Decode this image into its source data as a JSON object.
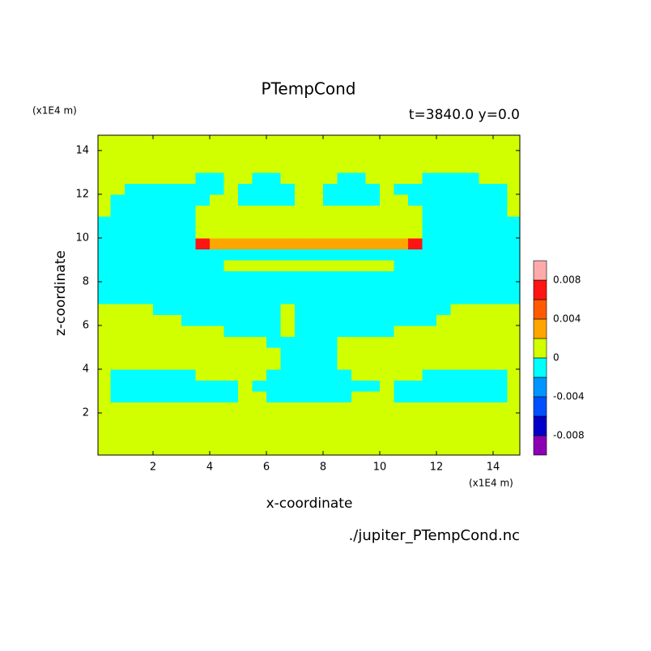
{
  "chart_data": {
    "type": "contour",
    "title": "PTempCond",
    "subtitle": "t=3840.0 y=0.0",
    "xlabel": "x-coordinate",
    "ylabel": "z-coordinate",
    "y_unit": "(x1E4 m)",
    "x_unit": "(x1E4 m)",
    "source": "./jupiter_PTempCond.nc",
    "xlim": [
      0,
      15
    ],
    "ylim": [
      0,
      14.7
    ],
    "xticks": [
      2,
      4,
      6,
      8,
      10,
      12,
      14
    ],
    "yticks": [
      2,
      4,
      6,
      8,
      10,
      12,
      14
    ],
    "levels": [
      -0.01,
      -0.008,
      -0.006,
      -0.004,
      -0.002,
      0,
      0.002,
      0.004,
      0.006,
      0.008,
      0.01
    ],
    "colors": [
      "#8c00b4",
      "#0000c8",
      "#0050ff",
      "#0096ff",
      "#00ffff",
      "#d2ff00",
      "#ffa500",
      "#ff5a00",
      "#ff1414",
      "#ffaaaa"
    ],
    "cticks": [
      -0.008,
      -0.004,
      0,
      0.004,
      0.008
    ],
    "x": [
      0.25,
      0.75,
      1.25,
      1.75,
      2.25,
      2.75,
      3.25,
      3.75,
      4.25,
      4.75,
      5.25,
      5.75,
      6.25,
      6.75,
      7.25,
      7.75,
      8.25,
      8.75,
      9.25,
      9.75,
      10.25,
      10.75,
      11.25,
      11.75,
      12.25,
      12.75,
      13.25,
      13.75,
      14.25,
      14.75
    ],
    "y": [
      0.25,
      0.75,
      1.25,
      1.75,
      2.25,
      2.75,
      3.25,
      3.75,
      4.25,
      4.75,
      5.25,
      5.75,
      6.25,
      6.75,
      7.25,
      7.75,
      8.25,
      8.75,
      9.25,
      9.75,
      10.25,
      10.75,
      11.25,
      11.75,
      12.25,
      12.75,
      13.25,
      13.75,
      14.25,
      14.75
    ],
    "values": [
      [
        0.001,
        0.001,
        0.001,
        0.001,
        0.001,
        0.001,
        0.001,
        0.001,
        0.001,
        0.001,
        0.001,
        0.001,
        0.001,
        0.001,
        0.001,
        0.001,
        0.001,
        0.001,
        0.001,
        0.001,
        0.001,
        0.001,
        0.001,
        0.001,
        0.001,
        0.001,
        0.001,
        0.001,
        0.001,
        0.001
      ],
      [
        0.001,
        0.001,
        0.001,
        0.001,
        0.001,
        0.001,
        0.001,
        0.001,
        0.001,
        0.001,
        0.001,
        0.001,
        0.001,
        0.001,
        0.001,
        0.001,
        0.001,
        0.001,
        0.001,
        0.001,
        0.001,
        0.001,
        0.001,
        0.001,
        0.001,
        0.001,
        0.001,
        0.001,
        0.001,
        0.001
      ],
      [
        0.001,
        0.001,
        0.001,
        0.001,
        0.001,
        0.001,
        0.001,
        0.001,
        0.001,
        0.001,
        0.001,
        0.001,
        0.001,
        0.001,
        0.001,
        0.001,
        0.001,
        0.001,
        0.001,
        0.001,
        0.001,
        0.001,
        0.001,
        0.001,
        0.001,
        0.001,
        0.001,
        0.001,
        0.001,
        0.001
      ],
      [
        0.001,
        0.001,
        0.001,
        0.001,
        0.001,
        0.001,
        0.001,
        0.001,
        0.001,
        0.001,
        0.001,
        0.001,
        0.001,
        0.001,
        0.001,
        0.001,
        0.001,
        0.001,
        0.001,
        0.001,
        0.001,
        0.001,
        0.001,
        0.001,
        0.001,
        0.001,
        0.001,
        0.001,
        0.001,
        0.001
      ],
      [
        0.001,
        0.001,
        0.001,
        0.001,
        0.001,
        0.001,
        0.001,
        0.001,
        0.001,
        0.001,
        0.001,
        0.001,
        0.001,
        0.001,
        0.001,
        0.001,
        0.001,
        0.001,
        0.001,
        0.001,
        0.001,
        0.001,
        0.001,
        0.001,
        0.001,
        0.001,
        0.001,
        0.001,
        0.001,
        0.001
      ],
      [
        0.001,
        -0.001,
        -0.001,
        -0.001,
        -0.001,
        -0.001,
        -0.001,
        -0.001,
        -0.001,
        -0.001,
        0.001,
        0.001,
        -0.001,
        -0.001,
        -0.001,
        -0.001,
        -0.001,
        -0.001,
        0.001,
        0.001,
        0.001,
        -0.001,
        -0.001,
        -0.001,
        -0.001,
        -0.001,
        -0.001,
        -0.001,
        -0.001,
        0.001
      ],
      [
        0.001,
        -0.001,
        -0.001,
        -0.001,
        -0.001,
        -0.001,
        -0.001,
        -0.001,
        -0.001,
        -0.001,
        0.001,
        -0.001,
        -0.001,
        -0.001,
        -0.001,
        -0.001,
        -0.001,
        -0.001,
        -0.001,
        -0.001,
        0.001,
        -0.001,
        -0.001,
        -0.001,
        -0.001,
        -0.001,
        -0.001,
        -0.001,
        -0.001,
        0.001
      ],
      [
        0.001,
        -0.001,
        -0.001,
        -0.001,
        -0.001,
        -0.001,
        -0.001,
        0.001,
        0.001,
        0.001,
        0.001,
        0.001,
        -0.001,
        -0.001,
        -0.001,
        -0.001,
        -0.001,
        -0.001,
        0.001,
        0.001,
        0.001,
        0.001,
        0.001,
        -0.001,
        -0.001,
        -0.001,
        -0.001,
        -0.001,
        -0.001,
        0.001
      ],
      [
        0.001,
        0.001,
        0.001,
        0.001,
        0.001,
        0.001,
        0.001,
        0.001,
        0.001,
        0.001,
        0.001,
        0.001,
        0.001,
        -0.001,
        -0.001,
        -0.001,
        -0.001,
        0.001,
        0.001,
        0.001,
        0.001,
        0.001,
        0.001,
        0.001,
        0.001,
        0.001,
        0.001,
        0.001,
        0.001,
        0.001
      ],
      [
        0.001,
        0.001,
        0.001,
        0.001,
        0.001,
        0.001,
        0.001,
        0.001,
        0.001,
        0.001,
        0.001,
        0.001,
        0.001,
        -0.001,
        -0.001,
        -0.001,
        -0.001,
        0.001,
        0.001,
        0.001,
        0.001,
        0.001,
        0.001,
        0.001,
        0.001,
        0.001,
        0.001,
        0.001,
        0.001,
        0.001
      ],
      [
        0.001,
        0.001,
        0.001,
        0.001,
        0.001,
        0.001,
        0.001,
        0.001,
        0.001,
        0.001,
        0.001,
        0.001,
        -0.001,
        -0.001,
        -0.001,
        -0.001,
        -0.001,
        0.001,
        0.001,
        0.001,
        0.001,
        0.001,
        0.001,
        0.001,
        0.001,
        0.001,
        0.001,
        0.001,
        0.001,
        0.001
      ],
      [
        0.001,
        0.001,
        0.001,
        0.001,
        0.001,
        0.001,
        0.001,
        0.001,
        0.001,
        -0.001,
        -0.001,
        -0.001,
        -0.001,
        0.001,
        -0.001,
        -0.001,
        -0.001,
        -0.001,
        -0.001,
        -0.001,
        -0.001,
        0.001,
        0.001,
        0.001,
        0.001,
        0.001,
        0.001,
        0.001,
        0.001,
        0.001
      ],
      [
        0.001,
        0.001,
        0.001,
        0.001,
        0.001,
        0.001,
        -0.001,
        -0.001,
        -0.001,
        -0.001,
        -0.001,
        -0.001,
        -0.001,
        0.001,
        -0.001,
        -0.001,
        -0.001,
        -0.001,
        -0.001,
        -0.001,
        -0.001,
        -0.001,
        -0.001,
        -0.001,
        0.001,
        0.001,
        0.001,
        0.001,
        0.001,
        0.001
      ],
      [
        0.001,
        0.001,
        0.001,
        0.001,
        -0.001,
        -0.001,
        -0.001,
        -0.001,
        -0.001,
        -0.001,
        -0.001,
        -0.001,
        -0.001,
        0.001,
        -0.001,
        -0.001,
        -0.001,
        -0.001,
        -0.001,
        -0.001,
        -0.001,
        -0.001,
        -0.001,
        -0.001,
        -0.001,
        0.001,
        0.001,
        0.001,
        0.001,
        0.001
      ],
      [
        -0.001,
        -0.001,
        -0.001,
        -0.001,
        -0.001,
        -0.001,
        -0.001,
        -0.001,
        -0.001,
        -0.001,
        -0.001,
        -0.001,
        -0.001,
        -0.001,
        -0.001,
        -0.001,
        -0.001,
        -0.001,
        -0.001,
        -0.001,
        -0.001,
        -0.001,
        -0.001,
        -0.001,
        -0.001,
        -0.001,
        -0.001,
        -0.001,
        -0.001,
        -0.001
      ],
      [
        -0.001,
        -0.001,
        -0.001,
        -0.001,
        -0.001,
        -0.001,
        -0.001,
        -0.001,
        -0.001,
        -0.001,
        -0.001,
        -0.001,
        -0.001,
        -0.001,
        -0.001,
        -0.001,
        -0.001,
        -0.001,
        -0.001,
        -0.001,
        -0.001,
        -0.001,
        -0.001,
        -0.001,
        -0.001,
        -0.001,
        -0.001,
        -0.001,
        -0.001,
        -0.001
      ],
      [
        -0.001,
        -0.001,
        -0.001,
        -0.001,
        -0.001,
        -0.001,
        -0.001,
        -0.001,
        -0.001,
        -0.001,
        -0.001,
        -0.001,
        -0.001,
        -0.001,
        -0.001,
        -0.001,
        -0.001,
        -0.001,
        -0.001,
        -0.001,
        -0.001,
        -0.001,
        -0.001,
        -0.001,
        -0.001,
        -0.001,
        -0.001,
        -0.001,
        -0.001,
        -0.001
      ],
      [
        -0.001,
        -0.001,
        -0.001,
        -0.001,
        -0.001,
        -0.001,
        -0.001,
        -0.001,
        -0.001,
        0.001,
        0.001,
        0.001,
        0.001,
        0.001,
        0.001,
        0.001,
        0.001,
        0.001,
        0.001,
        0.001,
        0.001,
        -0.001,
        -0.001,
        -0.001,
        -0.001,
        -0.001,
        -0.001,
        -0.001,
        -0.001,
        -0.001
      ],
      [
        -0.001,
        -0.001,
        -0.001,
        -0.001,
        -0.001,
        -0.001,
        -0.001,
        -0.001,
        -0.001,
        -0.001,
        -0.001,
        -0.001,
        -0.001,
        -0.001,
        -0.001,
        -0.001,
        -0.001,
        -0.001,
        -0.001,
        -0.001,
        -0.001,
        -0.001,
        -0.001,
        -0.001,
        -0.001,
        -0.001,
        -0.001,
        -0.001,
        -0.001,
        -0.001
      ],
      [
        -0.001,
        -0.001,
        -0.001,
        -0.001,
        -0.001,
        -0.001,
        -0.001,
        0.007,
        0.003,
        0.003,
        0.003,
        0.003,
        0.003,
        0.003,
        0.003,
        0.003,
        0.003,
        0.003,
        0.003,
        0.003,
        0.003,
        0.003,
        0.007,
        -0.001,
        -0.001,
        -0.001,
        -0.001,
        -0.001,
        -0.001,
        -0.001
      ],
      [
        -0.001,
        -0.001,
        -0.001,
        -0.001,
        -0.001,
        -0.001,
        -0.001,
        0.001,
        0.001,
        0.001,
        0.001,
        0.001,
        0.001,
        0.001,
        0.001,
        0.001,
        0.001,
        0.001,
        0.001,
        0.001,
        0.001,
        0.001,
        0.001,
        -0.001,
        -0.001,
        -0.001,
        -0.001,
        -0.001,
        -0.001,
        -0.001
      ],
      [
        -0.001,
        -0.001,
        -0.001,
        -0.001,
        -0.001,
        -0.001,
        -0.001,
        0.001,
        0.001,
        0.001,
        0.001,
        0.001,
        0.001,
        0.001,
        0.001,
        0.001,
        0.001,
        0.001,
        0.001,
        0.001,
        0.001,
        0.001,
        0.001,
        -0.001,
        -0.001,
        -0.001,
        -0.001,
        -0.001,
        -0.001,
        -0.001
      ],
      [
        0.001,
        -0.001,
        -0.001,
        -0.001,
        -0.001,
        -0.001,
        -0.001,
        0.001,
        0.001,
        0.001,
        0.001,
        0.001,
        0.001,
        0.001,
        0.001,
        0.001,
        0.001,
        0.001,
        0.001,
        0.001,
        0.001,
        0.001,
        0.001,
        -0.001,
        -0.001,
        -0.001,
        -0.001,
        -0.001,
        -0.001,
        0.001
      ],
      [
        0.001,
        -0.001,
        -0.001,
        -0.001,
        -0.001,
        -0.001,
        -0.001,
        -0.001,
        0.001,
        0.001,
        -0.001,
        -0.001,
        -0.001,
        -0.001,
        0.001,
        0.001,
        -0.001,
        -0.001,
        -0.001,
        -0.001,
        0.001,
        0.001,
        -0.001,
        -0.001,
        -0.001,
        -0.001,
        -0.001,
        -0.001,
        -0.001,
        0.001
      ],
      [
        0.001,
        0.001,
        -0.001,
        -0.001,
        -0.001,
        -0.001,
        -0.001,
        -0.001,
        -0.001,
        0.001,
        -0.001,
        -0.001,
        -0.001,
        -0.001,
        0.001,
        0.001,
        -0.001,
        -0.001,
        -0.001,
        -0.001,
        0.001,
        -0.001,
        -0.001,
        -0.001,
        -0.001,
        -0.001,
        -0.001,
        -0.001,
        -0.001,
        0.001
      ],
      [
        0.001,
        0.001,
        0.001,
        0.001,
        0.001,
        0.001,
        0.001,
        -0.001,
        -0.001,
        0.001,
        0.001,
        -0.001,
        -0.001,
        0.001,
        0.001,
        0.001,
        0.001,
        -0.001,
        -0.001,
        0.001,
        0.001,
        0.001,
        0.001,
        -0.001,
        -0.001,
        -0.001,
        -0.001,
        0.001,
        0.001,
        0.001
      ],
      [
        0.001,
        0.001,
        0.001,
        0.001,
        0.001,
        0.001,
        0.001,
        0.001,
        0.001,
        0.001,
        0.001,
        0.001,
        0.001,
        0.001,
        0.001,
        0.001,
        0.001,
        0.001,
        0.001,
        0.001,
        0.001,
        0.001,
        0.001,
        0.001,
        0.001,
        0.001,
        0.001,
        0.001,
        0.001,
        0.001
      ],
      [
        0.001,
        0.001,
        0.001,
        0.001,
        0.001,
        0.001,
        0.001,
        0.001,
        0.001,
        0.001,
        0.001,
        0.001,
        0.001,
        0.001,
        0.001,
        0.001,
        0.001,
        0.001,
        0.001,
        0.001,
        0.001,
        0.001,
        0.001,
        0.001,
        0.001,
        0.001,
        0.001,
        0.001,
        0.001,
        0.001
      ],
      [
        0.001,
        0.001,
        0.001,
        0.001,
        0.001,
        0.001,
        0.001,
        0.001,
        0.001,
        0.001,
        0.001,
        0.001,
        0.001,
        0.001,
        0.001,
        0.001,
        0.001,
        0.001,
        0.001,
        0.001,
        0.001,
        0.001,
        0.001,
        0.001,
        0.001,
        0.001,
        0.001,
        0.001,
        0.001,
        0.001
      ],
      [
        0.001,
        0.001,
        0.001,
        0.001,
        0.001,
        0.001,
        0.001,
        0.001,
        0.001,
        0.001,
        0.001,
        0.001,
        0.001,
        0.001,
        0.001,
        0.001,
        0.001,
        0.001,
        0.001,
        0.001,
        0.001,
        0.001,
        0.001,
        0.001,
        0.001,
        0.001,
        0.001,
        0.001,
        0.001,
        0.001
      ]
    ]
  }
}
